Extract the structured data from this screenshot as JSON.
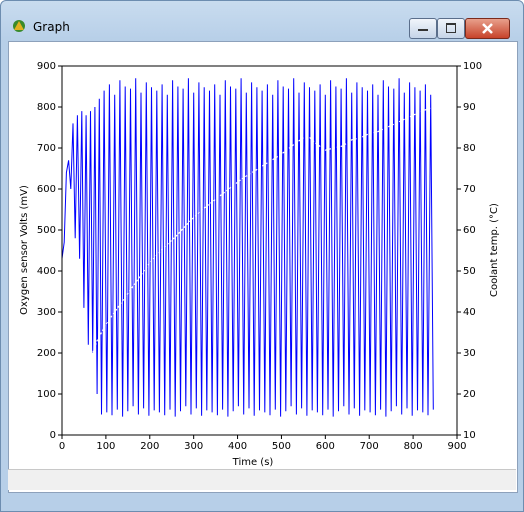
{
  "window": {
    "title": "Graph"
  },
  "chart_data": {
    "type": "line",
    "xlabel": "Time (s)",
    "ylabel": "Oxygen sensor Volts (mV)",
    "y2label": "Coolant temp. (°C)",
    "xlim": [
      0,
      900
    ],
    "xticks": [
      0,
      100,
      200,
      300,
      400,
      500,
      600,
      700,
      800,
      900
    ],
    "ylim": [
      0,
      900
    ],
    "yticks": [
      0,
      100,
      200,
      300,
      400,
      500,
      600,
      700,
      800,
      900
    ],
    "y2lim": [
      10,
      100
    ],
    "y2ticks": [
      10,
      20,
      30,
      40,
      50,
      60,
      70,
      80,
      90,
      100
    ],
    "series": [
      {
        "color": "#0000ff",
        "x": [
          0,
          5,
          10,
          15,
          20,
          25,
          30,
          35,
          40,
          45,
          50,
          55,
          60,
          65,
          70,
          75,
          80,
          85,
          90,
          96,
          102,
          108,
          114,
          120,
          126,
          132,
          138,
          144,
          150,
          156,
          162,
          168,
          174,
          180,
          186,
          192,
          198,
          204,
          210,
          216,
          222,
          228,
          234,
          240,
          246,
          252,
          258,
          264,
          270,
          276,
          282,
          288,
          294,
          300,
          306,
          312,
          318,
          324,
          330,
          336,
          342,
          348,
          354,
          360,
          366,
          372,
          378,
          384,
          390,
          396,
          402,
          408,
          414,
          420,
          426,
          432,
          438,
          444,
          450,
          456,
          462,
          468,
          474,
          480,
          486,
          492,
          498,
          504,
          510,
          516,
          522,
          528,
          534,
          540,
          546,
          552,
          558,
          564,
          570,
          576,
          582,
          588,
          594,
          600,
          606,
          612,
          618,
          624,
          630,
          636,
          642,
          648,
          654,
          660,
          666,
          672,
          678,
          684,
          690,
          696,
          702,
          708,
          714,
          720,
          726,
          732,
          738,
          744,
          750,
          756,
          762,
          768,
          774,
          780,
          786,
          792,
          798,
          804,
          810,
          816,
          822,
          828,
          834,
          840,
          846
        ],
        "values": [
          430,
          470,
          640,
          670,
          600,
          760,
          480,
          780,
          430,
          790,
          310,
          780,
          220,
          790,
          200,
          800,
          100,
          820,
          50,
          840,
          55,
          855,
          48,
          830,
          62,
          865,
          45,
          850,
          58,
          845,
          70,
          870,
          50,
          835,
          65,
          860,
          47,
          848,
          60,
          840,
          55,
          855,
          48,
          830,
          62,
          865,
          45,
          850,
          58,
          845,
          70,
          870,
          50,
          835,
          65,
          860,
          47,
          848,
          60,
          840,
          55,
          855,
          48,
          830,
          62,
          865,
          45,
          850,
          58,
          845,
          70,
          870,
          50,
          835,
          65,
          860,
          47,
          848,
          60,
          840,
          55,
          855,
          48,
          830,
          62,
          865,
          45,
          850,
          58,
          845,
          70,
          870,
          50,
          835,
          65,
          860,
          47,
          848,
          60,
          840,
          55,
          855,
          48,
          830,
          62,
          865,
          45,
          850,
          58,
          845,
          70,
          870,
          50,
          835,
          65,
          860,
          47,
          848,
          60,
          840,
          55,
          855,
          48,
          830,
          62,
          865,
          45,
          850,
          58,
          845,
          70,
          870,
          50,
          835,
          65,
          860,
          47,
          848,
          60,
          840,
          55,
          855,
          48,
          830,
          62
        ]
      },
      {
        "color": "#ffffff",
        "axis": "y2",
        "x": [
          0,
          10,
          20,
          30,
          40,
          50,
          60,
          70,
          80,
          90,
          100,
          120,
          140,
          160,
          180,
          200,
          230,
          260,
          290,
          320,
          350,
          380,
          410,
          440,
          470,
          500,
          530,
          550,
          565,
          580,
          600,
          620,
          640,
          660,
          680,
          700,
          720,
          740,
          760,
          780,
          800,
          820,
          846
        ],
        "values": [
          19,
          19.5,
          20.5,
          22,
          23.5,
          25.5,
          27.5,
          30,
          33,
          35,
          37,
          40,
          43,
          46,
          49,
          52,
          55.5,
          58.5,
          62,
          65,
          67.5,
          70,
          72.5,
          74.5,
          76.5,
          78.5,
          81,
          82.5,
          82.5,
          81,
          79.5,
          80,
          80.5,
          82,
          82.5,
          83.5,
          84,
          85,
          86,
          87,
          88,
          89,
          90
        ]
      }
    ]
  }
}
